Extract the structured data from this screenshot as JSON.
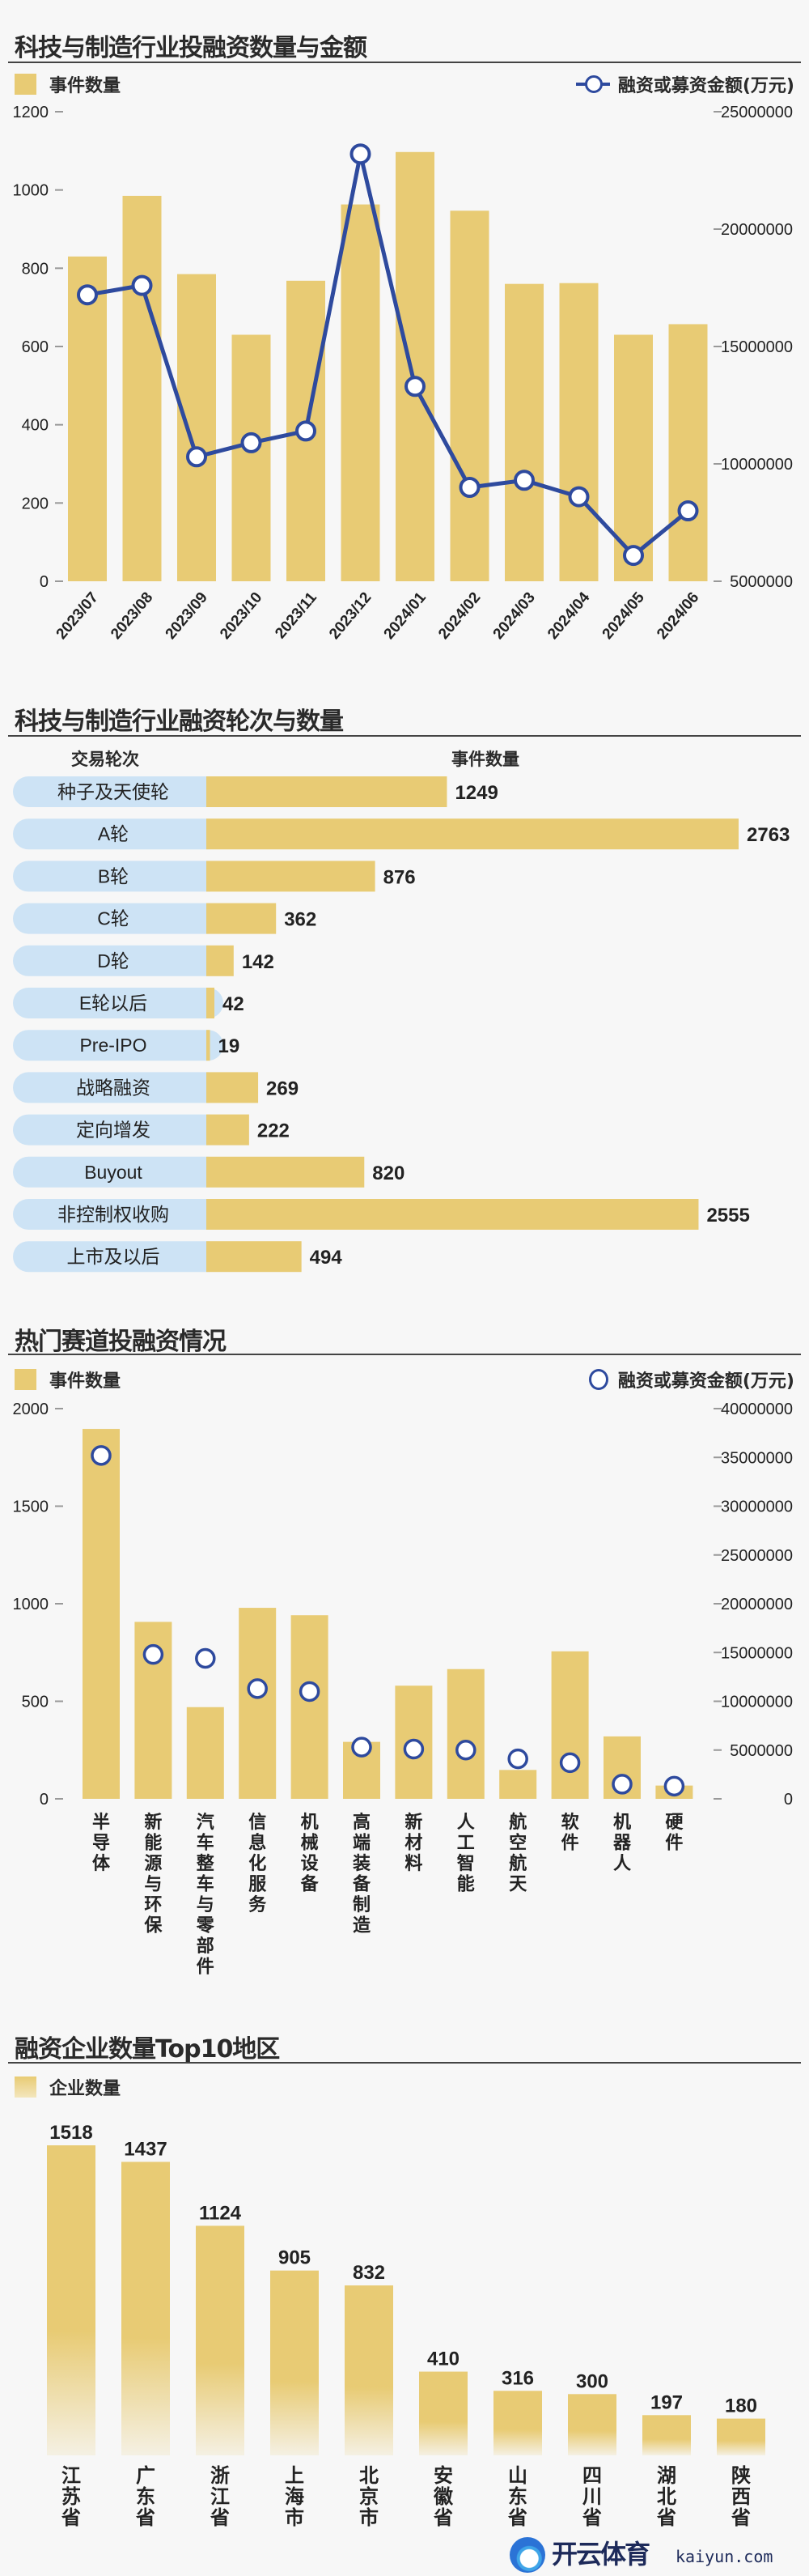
{
  "colors": {
    "bar": "#e8cb74",
    "line": "#2e4a9e",
    "pill": "#cde3f5",
    "bg": "#f7f7f7"
  },
  "chart_data": [
    {
      "type": "bar+line",
      "title": "科技与制造行业投融资数量与金额",
      "legend": {
        "bar": "事件数量",
        "line": "融资或募资金额(万元)"
      },
      "categories": [
        "2023/07",
        "2023/08",
        "2023/09",
        "2023/10",
        "2023/11",
        "2023/12",
        "2024/01",
        "2024/02",
        "2024/03",
        "2024/04",
        "2024/05",
        "2024/06"
      ],
      "bar_values": [
        830,
        985,
        785,
        630,
        768,
        963,
        1097,
        947,
        760,
        762,
        630,
        657
      ],
      "line_values": [
        17200000,
        17600000,
        10300000,
        10900000,
        11400000,
        23200000,
        13300000,
        9000000,
        9300000,
        8600000,
        6100000,
        8000000
      ],
      "ylim_left": [
        0,
        1200
      ],
      "yticks_left": [
        "0",
        "200",
        "400",
        "600",
        "800",
        "1000",
        "1200"
      ],
      "ylim_right": [
        5000000,
        25000000
      ],
      "yticks_right": [
        "5000000",
        "10000000",
        "15000000",
        "20000000",
        "25000000"
      ]
    },
    {
      "type": "bar",
      "orientation": "horizontal",
      "title": "科技与制造行业融资轮次与数量",
      "column_headers": [
        "交易轮次",
        "事件数量"
      ],
      "categories": [
        "种子及天使轮",
        "A轮",
        "B轮",
        "C轮",
        "D轮",
        "E轮以后",
        "Pre-IPO",
        "战略融资",
        "定向增发",
        "Buyout",
        "非控制权收购",
        "上市及以后"
      ],
      "values": [
        1249,
        2763,
        876,
        362,
        142,
        42,
        19,
        269,
        222,
        820,
        2555,
        494
      ]
    },
    {
      "type": "bar+scatter",
      "title": "热门赛道投融资情况",
      "legend": {
        "bar": "事件数量",
        "scatter": "融资或募资金额(万元)"
      },
      "categories": [
        "半导体",
        "新能源与环保",
        "汽车整车与零部件",
        "信息化服务",
        "机械设备",
        "高端装备制造",
        "新材料",
        "人工智能",
        "航空航天",
        "软件",
        "机器人",
        "硬件"
      ],
      "bar_values": [
        1896,
        907,
        470,
        979,
        941,
        292,
        580,
        665,
        148,
        756,
        320,
        68
      ],
      "scatter_values": [
        35200000,
        14800000,
        14400000,
        11300000,
        11000000,
        5300000,
        5100000,
        5000000,
        4100000,
        3700000,
        1500000,
        1300000
      ],
      "ylim_left": [
        0,
        2000
      ],
      "yticks_left": [
        "0",
        "500",
        "1000",
        "1500",
        "2000"
      ],
      "ylim_right": [
        0,
        40000000
      ],
      "yticks_right": [
        "0",
        "5000000",
        "10000000",
        "15000000",
        "20000000",
        "25000000",
        "30000000",
        "35000000",
        "40000000"
      ]
    },
    {
      "type": "bar",
      "title": "融资企业数量Top10地区",
      "legend": {
        "bar": "企业数量"
      },
      "categories": [
        "江苏省",
        "广东省",
        "浙江省",
        "上海市",
        "北京市",
        "安徽省",
        "山东省",
        "四川省",
        "湖北省",
        "陕西省"
      ],
      "values": [
        1518,
        1437,
        1124,
        905,
        832,
        410,
        316,
        300,
        197,
        180
      ]
    }
  ],
  "watermark": {
    "name": "开云体育",
    "site": "kaiyun.com"
  }
}
